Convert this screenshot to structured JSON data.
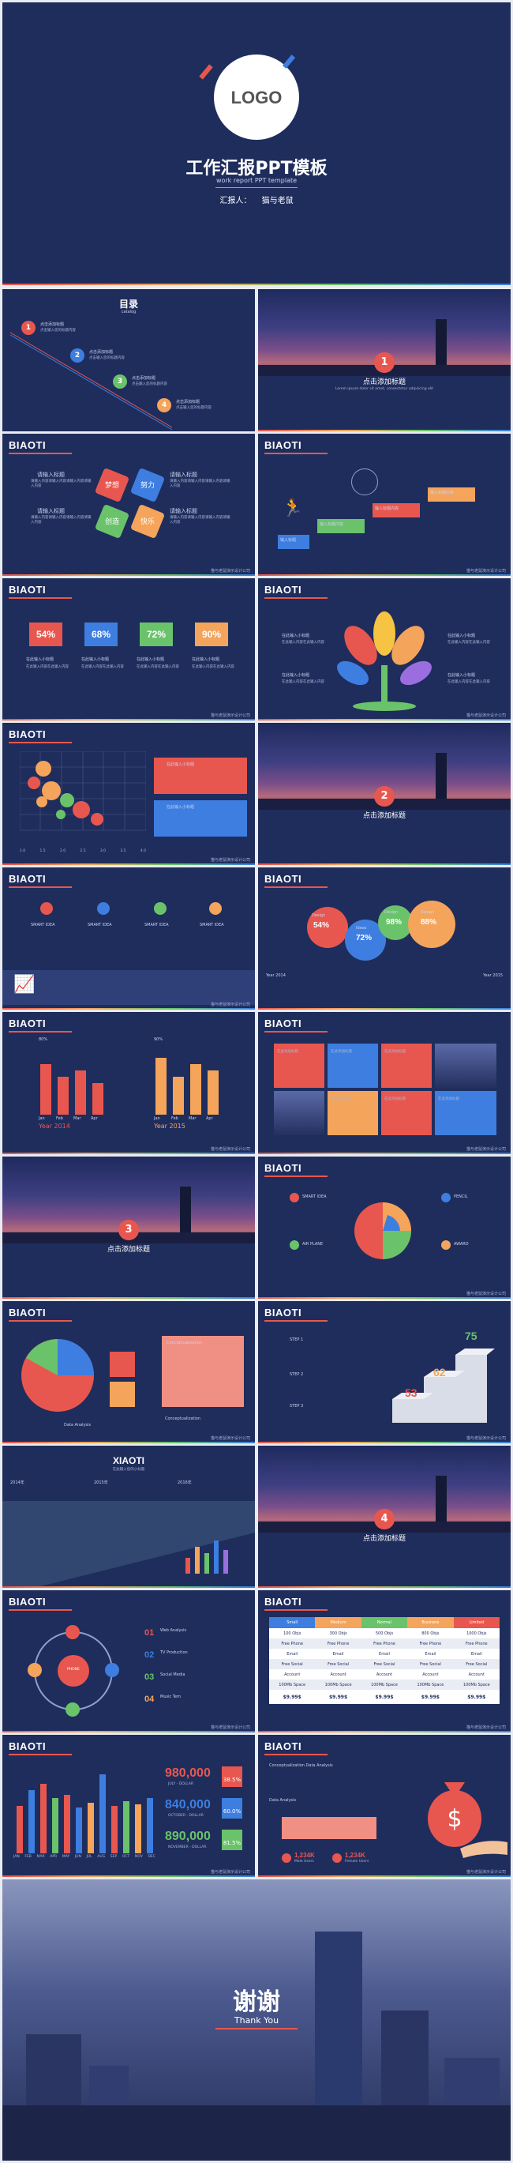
{
  "cover": {
    "logo": "LOGO",
    "title": "工作汇报PPT模板",
    "subtitle": "work report  PPT template",
    "reporter_label": "汇报人：",
    "reporter_name": "猫与老鼠"
  },
  "s2": {
    "title": "目录",
    "sub": "catalog",
    "items": [
      {
        "n": "1",
        "t": "点击添加标题",
        "d": "点击输入您的标题内容"
      },
      {
        "n": "2",
        "t": "点击添加标题",
        "d": "点击输入您的标题内容"
      },
      {
        "n": "3",
        "t": "点击添加标题",
        "d": "点击输入您的标题内容"
      },
      {
        "n": "4",
        "t": "点击添加标题",
        "d": "点击输入您的标题内容"
      }
    ]
  },
  "s3": {
    "num": "1",
    "title": "点击添加标题",
    "d": "Lorem ipsum dolor sit amet, consectetur adipiscing elit"
  },
  "s4": {
    "hdr": "BIAOTI",
    "badges": [
      "梦想",
      "努力",
      "创造",
      "快乐"
    ],
    "t": "请输入标题",
    "d": "请输入内容请输入内容请输入内容请输入内容"
  },
  "s5": {
    "hdr": "BIAOTI",
    "steps": [
      "输入标题",
      "输入标题内容",
      "输入标题内容",
      "输入标题内容"
    ]
  },
  "s6": {
    "hdr": "BIAOTI",
    "pcts": [
      "54%",
      "68%",
      "72%",
      "90%"
    ],
    "t": "在此输入小标题",
    "d": "在此输入内容在此输入内容"
  },
  "s7": {
    "hdr": "BIAOTI",
    "t": "在此输入小标题",
    "d": "在此输入内容在此输入内容"
  },
  "s8": {
    "hdr": "BIAOTI",
    "box": "在此输入小标题",
    "axis": [
      "1.0",
      "1.5",
      "2.0",
      "2.5",
      "3.0",
      "3.5",
      "4.0"
    ]
  },
  "s9": {
    "num": "2",
    "title": "点击添加标题"
  },
  "s10": {
    "hdr": "BIAOTI",
    "items": [
      "SMART IDEA",
      "SMART IDEA",
      "SMART IDEA",
      "SMART IDEA"
    ]
  },
  "s11": {
    "hdr": "BIAOTI",
    "bubbles": [
      {
        "t": "Design",
        "v": "54%"
      },
      {
        "t": "Ideas",
        "v": "72%"
      },
      {
        "t": "Design",
        "v": "98%"
      },
      {
        "t": "Design",
        "v": "88%"
      }
    ],
    "y1": "Year 2014",
    "y2": "Year 2015"
  },
  "s12": {
    "hdr": "BIAOTI",
    "left_year": "Year 2014",
    "right_year": "Year 2015",
    "months": [
      "Jan",
      "Feb",
      "Mar",
      "Apr"
    ],
    "lv": [
      "80%",
      "60%",
      "70%",
      "50%"
    ],
    "rv": [
      "90%",
      "60%",
      "80%",
      "70%"
    ]
  },
  "s13": {
    "hdr": "BIAOTI",
    "cells": [
      "在此添加标题",
      "在此添加标题",
      "在此添加标题",
      "在此添加标题",
      "在此添加标题",
      "在此添加标题"
    ]
  },
  "s14": {
    "num": "3",
    "title": "点击添加标题"
  },
  "s15": {
    "hdr": "BIAOTI",
    "items": [
      "SMART IDEA",
      "PENCIL",
      "AIR PLANE",
      "AWARD"
    ]
  },
  "s16": {
    "hdr": "BIAOTI",
    "box_t": "Conceptualization",
    "da": "Data Analysis",
    "ca": "Conceptualization"
  },
  "s17": {
    "hdr": "BIAOTI",
    "steps": [
      "STEP 1",
      "STEP 2",
      "STEP 3"
    ],
    "nums": [
      "75",
      "62",
      "53"
    ]
  },
  "s18": {
    "title": "XIAOTI",
    "sub": "在此输入您的小标题",
    "years": [
      "2014年",
      "2015年",
      "2016年"
    ]
  },
  "s19": {
    "num": "4",
    "title": "点击添加标题"
  },
  "s20": {
    "hdr": "BIAOTI",
    "center": "PHONE",
    "rows": [
      {
        "n": "01",
        "t": "Web Analysis"
      },
      {
        "n": "02",
        "t": "TV Production"
      },
      {
        "n": "03",
        "t": "Social Media"
      },
      {
        "n": "04",
        "t": "Music Tem"
      }
    ]
  },
  "s21": {
    "hdr": "BIAOTI",
    "cols": [
      "Small",
      "Medium",
      "Normal",
      "Business",
      "Limited"
    ],
    "rows": [
      [
        "100 Objs",
        "300 Objs",
        "500 Objs",
        "800 Objs",
        "1000 Objs"
      ],
      [
        "Free Phone",
        "Free Phone",
        "Free Phone",
        "Free Phone",
        "Free Phone"
      ],
      [
        "Email",
        "Email",
        "Email",
        "Email",
        "Email"
      ],
      [
        "Free Social",
        "Free Social",
        "Free Social",
        "Free Social",
        "Free Social"
      ],
      [
        "Account",
        "Account",
        "Account",
        "Account",
        "Account"
      ],
      [
        "100Mb Space",
        "100Mb Space",
        "100Mb Space",
        "100Mb Space",
        "100Mb Space"
      ],
      [
        "$9.99$",
        "$9.99$",
        "$9.99$",
        "$9.99$",
        "$9.99$"
      ]
    ]
  },
  "s22": {
    "hdr": "BIAOTI",
    "months": [
      "JAN",
      "FEB",
      "MAR",
      "APR",
      "MAY",
      "JUN",
      "JUL",
      "AUG",
      "SEP",
      "OCT",
      "NOV",
      "DEC"
    ],
    "stats": [
      {
        "v": "980,000",
        "l": "JULY - DOLLAR",
        "p": "38.5%"
      },
      {
        "v": "840,000",
        "l": "OCTOBER - DOLLAR",
        "p": "60.0%"
      },
      {
        "v": "890,000",
        "l": "NOVEMBER - DOLLAR",
        "p": "81.5%"
      }
    ]
  },
  "s23": {
    "hdr": "BIAOTI",
    "t1": "Conceptualization  Data Analysis",
    "t2": "Data Analysis",
    "m": "1,234K",
    "m_l": "Male Users",
    "f": "1,234K",
    "f_l": "Female Users"
  },
  "end": {
    "title": "谢谢",
    "sub": "Thank You"
  },
  "footer": "猫与老鼠演示设计公司",
  "colors": {
    "bg": "#1f2d5c",
    "red": "#e8574f",
    "orange": "#f4a45b",
    "green": "#6ac36a",
    "blue": "#3d7ee0"
  }
}
